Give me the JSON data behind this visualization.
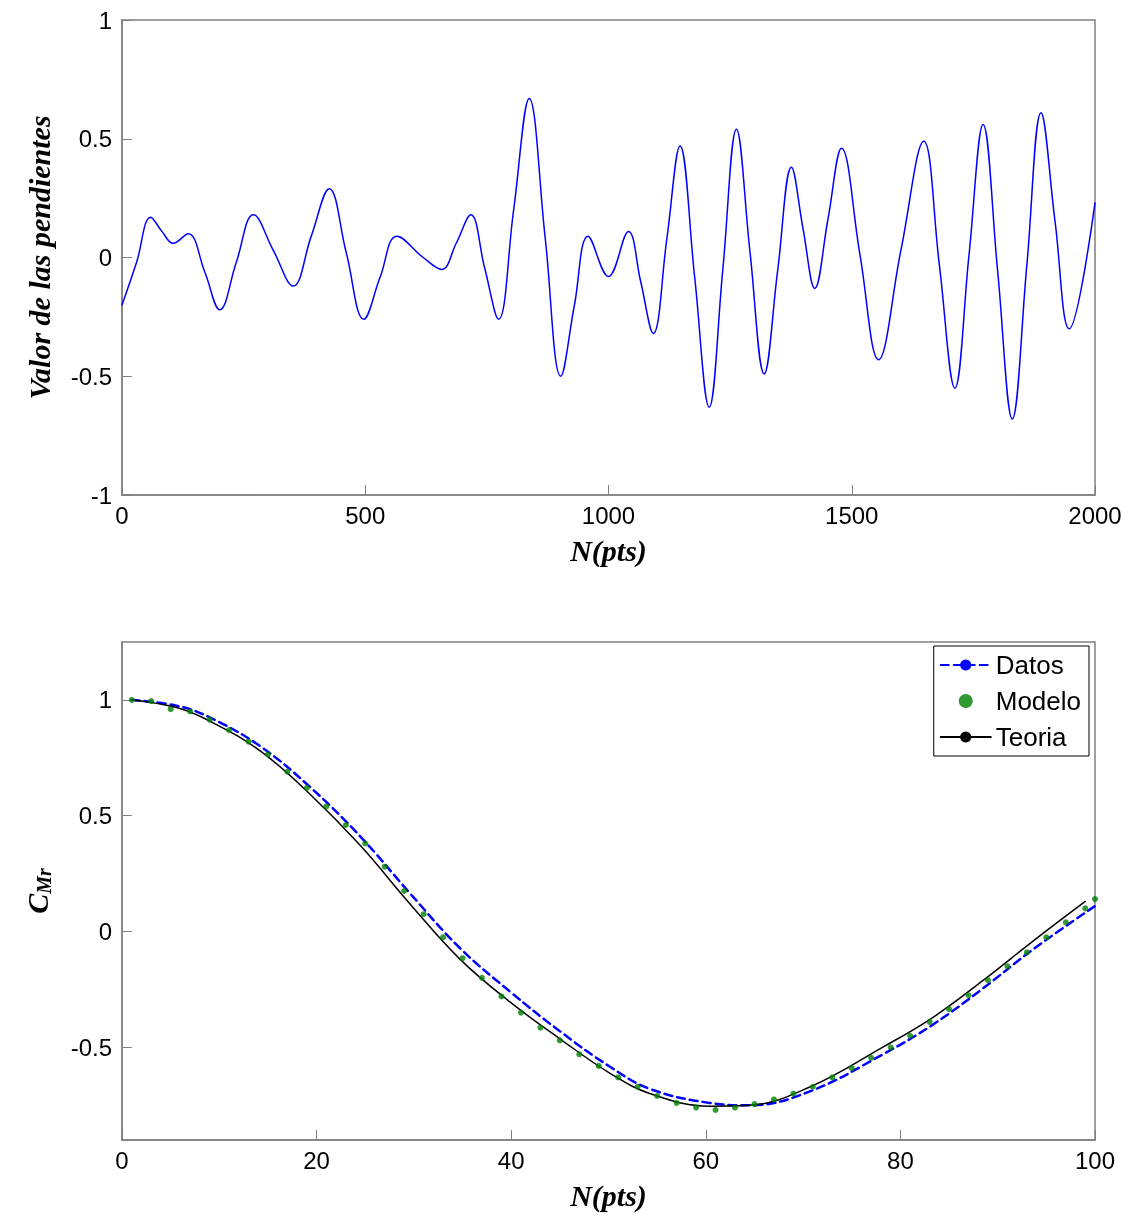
{
  "chart_data": [
    {
      "type": "line",
      "xlabel": "N(pts)",
      "ylabel": "Valor de las pendientes",
      "xlim": [
        0,
        2000
      ],
      "xticks": [
        0,
        500,
        1000,
        1500,
        2000
      ],
      "ylim": [
        -1,
        1
      ],
      "yticks": [
        -1,
        -0.5,
        0,
        0.5,
        1
      ],
      "marker": "none",
      "series": [
        {
          "color": "#0000ff",
          "x": [
            0,
            30,
            59,
            82,
            105,
            136,
            170,
            201,
            235,
            270,
            311,
            352,
            389,
            426,
            461,
            497,
            531,
            565,
            619,
            657,
            687,
            717,
            745,
            774,
            805,
            837,
            870,
            902,
            930,
            958,
            1000,
            1041,
            1066,
            1092,
            1120,
            1147,
            1177,
            1207,
            1235,
            1263,
            1291,
            1320,
            1348,
            1376,
            1400,
            1424,
            1451,
            1479,
            1517,
            1555,
            1601,
            1648,
            1680,
            1712,
            1741,
            1770,
            1800,
            1830,
            1860,
            1889,
            1918,
            1947,
            2000
          ],
          "values": [
            -0.2,
            -0.02,
            0.17,
            0.11,
            0.06,
            0.1,
            -0.06,
            -0.22,
            -0.02,
            0.18,
            0.03,
            -0.12,
            0.09,
            0.29,
            0.02,
            -0.26,
            -0.08,
            0.09,
            0.0,
            -0.05,
            0.06,
            0.18,
            -0.04,
            -0.26,
            0.2,
            0.67,
            0.08,
            -0.5,
            -0.2,
            0.09,
            -0.08,
            0.11,
            -0.1,
            -0.32,
            0.08,
            0.47,
            -0.08,
            -0.63,
            -0.05,
            0.54,
            0.02,
            -0.49,
            -0.05,
            0.38,
            0.12,
            -0.13,
            0.16,
            0.46,
            0.01,
            -0.43,
            0.03,
            0.49,
            -0.03,
            -0.55,
            0.01,
            0.56,
            -0.06,
            -0.68,
            -0.03,
            0.61,
            0.15,
            -0.3,
            0.23
          ]
        }
      ]
    },
    {
      "type": "line",
      "xlabel": "N(pts)",
      "ylabel": "C$_{Mr}$",
      "xlim": [
        0,
        100
      ],
      "xticks": [
        0,
        20,
        40,
        60,
        80,
        100
      ],
      "ylim": [
        -0.9,
        1.25
      ],
      "yticks": [
        -0.5,
        0,
        0.5,
        1
      ],
      "legend": "top right",
      "series": [
        {
          "name": "Datos",
          "color": "#0000ff",
          "line_style": "dashed",
          "marker": "none",
          "x": [
            1,
            5.6,
            9,
            14.2,
            19.3,
            24.5,
            29.6,
            34.7,
            39.9,
            45,
            50.2,
            54.3,
            60.4,
            64.5,
            70.7,
            78.2,
            83.4,
            88.5,
            93.7,
            100
          ],
          "values": [
            1.0,
            0.975,
            0.925,
            0.8,
            0.625,
            0.41,
            0.165,
            -0.07,
            -0.26,
            -0.43,
            -0.585,
            -0.68,
            -0.74,
            -0.75,
            -0.69,
            -0.53,
            -0.4,
            -0.245,
            -0.075,
            0.11
          ]
        },
        {
          "name": "Modelo",
          "type": "scatter",
          "color": "#008000",
          "marker": "circle",
          "x": [
            1,
            3,
            5,
            7,
            9,
            11,
            13,
            15,
            17,
            19,
            21,
            23,
            25,
            27,
            29,
            31,
            33,
            35,
            37,
            39,
            41,
            43,
            45,
            47,
            49,
            51,
            53,
            55,
            57,
            59,
            61,
            63,
            65,
            67,
            69,
            71,
            73,
            75,
            77,
            79,
            81,
            83,
            85,
            87,
            89,
            91,
            93,
            95,
            97,
            99,
            100
          ],
          "values": [
            1.0,
            0.995,
            0.96,
            0.95,
            0.915,
            0.87,
            0.82,
            0.765,
            0.69,
            0.62,
            0.54,
            0.46,
            0.38,
            0.28,
            0.175,
            0.075,
            -0.025,
            -0.115,
            -0.2,
            -0.28,
            -0.35,
            -0.415,
            -0.47,
            -0.53,
            -0.58,
            -0.63,
            -0.67,
            -0.71,
            -0.74,
            -0.76,
            -0.77,
            -0.76,
            -0.745,
            -0.725,
            -0.7,
            -0.67,
            -0.63,
            -0.59,
            -0.545,
            -0.5,
            -0.45,
            -0.39,
            -0.335,
            -0.275,
            -0.21,
            -0.15,
            -0.09,
            -0.025,
            0.04,
            0.1,
            0.14
          ]
        },
        {
          "name": "Teoria",
          "color": "#000000",
          "line_style": "solid",
          "marker": "none",
          "x": [
            1,
            5.6,
            9,
            14.2,
            19.3,
            24.5,
            29.6,
            34.7,
            39.9,
            45,
            50.2,
            54.3,
            60.4,
            64.5,
            70.7,
            78.2,
            83.4,
            88.5,
            93.7,
            99
          ],
          "values": [
            1.0,
            0.967,
            0.909,
            0.78,
            0.594,
            0.371,
            0.119,
            -0.118,
            -0.305,
            -0.463,
            -0.613,
            -0.7,
            -0.754,
            -0.75,
            -0.671,
            -0.499,
            -0.369,
            -0.211,
            -0.039,
            0.13
          ]
        }
      ]
    }
  ]
}
